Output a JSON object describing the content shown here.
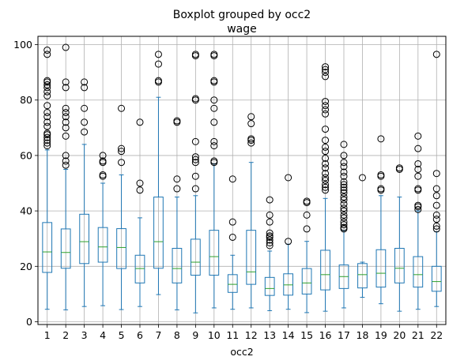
{
  "chart_data": {
    "type": "boxplot",
    "title": "Boxplot grouped by occ2",
    "subtitle": "wage",
    "xlabel": "occ2",
    "ylabel": "",
    "ylim": [
      -1,
      103
    ],
    "yticks": [
      0,
      20,
      40,
      60,
      80,
      100
    ],
    "categories": [
      "1",
      "2",
      "3",
      "4",
      "5",
      "6",
      "7",
      "8",
      "9",
      "10",
      "11",
      "12",
      "13",
      "14",
      "15",
      "16",
      "17",
      "18",
      "19",
      "20",
      "21",
      "22"
    ],
    "grid": true,
    "colors": {
      "box": "#1f77b4",
      "median": "#2ca02c",
      "flier": "#000000",
      "grid": "#b0b0b0"
    },
    "boxes": [
      {
        "min": 4.5,
        "q1": 17.8,
        "median": 25.2,
        "q3": 35.8,
        "max": 62.0,
        "fliers": [
          63.5,
          64.5,
          65.5,
          66.5,
          67.5,
          68.0,
          70.5,
          72.0,
          74.0,
          75.5,
          78.0,
          81.5,
          83.0,
          84.5,
          85.5,
          86.5,
          87.0,
          96.5,
          98.0
        ]
      },
      {
        "min": 4.3,
        "q1": 19.3,
        "median": 25.0,
        "q3": 33.5,
        "max": 55.0,
        "fliers": [
          56.5,
          58.0,
          60.0,
          67.0,
          70.0,
          72.0,
          74.0,
          75.5,
          77.0,
          84.5,
          86.5,
          99.0
        ]
      },
      {
        "min": 5.5,
        "q1": 21.0,
        "median": 28.9,
        "q3": 38.8,
        "max": 64.0,
        "fliers": [
          68.5,
          72.0,
          77.0,
          84.5,
          86.5
        ]
      },
      {
        "min": 5.8,
        "q1": 21.5,
        "median": 27.0,
        "q3": 34.0,
        "max": 50.0,
        "fliers": [
          52.5,
          53.0,
          57.5,
          58.0,
          60.0
        ]
      },
      {
        "min": 4.4,
        "q1": 19.2,
        "median": 26.8,
        "q3": 33.6,
        "max": 53.0,
        "fliers": [
          57.5,
          61.5,
          62.5,
          77.0
        ]
      },
      {
        "min": 5.5,
        "q1": 14.0,
        "median": 19.2,
        "q3": 24.0,
        "max": 37.5,
        "fliers": [
          47.5,
          50.0,
          72.0
        ]
      },
      {
        "min": 9.8,
        "q1": 19.3,
        "median": 28.9,
        "q3": 45.0,
        "max": 81.0,
        "fliers": [
          86.5,
          87.0,
          93.0,
          96.5
        ]
      },
      {
        "min": 4.3,
        "q1": 14.0,
        "median": 19.2,
        "q3": 26.5,
        "max": 45.0,
        "fliers": [
          48.0,
          51.5,
          72.0,
          72.5
        ]
      },
      {
        "min": 3.2,
        "q1": 16.8,
        "median": 21.5,
        "q3": 29.8,
        "max": 45.5,
        "fliers": [
          48.0,
          52.5,
          57.5,
          58.5,
          59.5,
          65.0,
          80.0,
          80.5,
          96.0,
          96.5
        ]
      },
      {
        "min": 5.0,
        "q1": 16.8,
        "median": 23.5,
        "q3": 33.0,
        "max": 57.0,
        "fliers": [
          57.5,
          58.0,
          63.5,
          65.0,
          72.0,
          77.0,
          80.0,
          86.5,
          87.0,
          96.0,
          96.5
        ]
      },
      {
        "min": 4.5,
        "q1": 10.6,
        "median": 13.5,
        "q3": 17.0,
        "max": 24.0,
        "fliers": [
          30.5,
          36.0,
          51.5
        ]
      },
      {
        "min": 5.0,
        "q1": 13.5,
        "median": 18.0,
        "q3": 33.0,
        "max": 57.5,
        "fliers": [
          64.5,
          65.5,
          66.0,
          71.5,
          74.0
        ]
      },
      {
        "min": 4.0,
        "q1": 9.5,
        "median": 12.0,
        "q3": 16.0,
        "max": 25.5,
        "fliers": [
          27.5,
          28.5,
          29.5,
          30.5,
          31.0,
          32.0,
          36.0,
          38.5,
          44.0
        ]
      },
      {
        "min": 4.5,
        "q1": 9.6,
        "median": 13.3,
        "q3": 17.3,
        "max": 28.0,
        "fliers": [
          29.0,
          52.0
        ]
      },
      {
        "min": 3.3,
        "q1": 10.0,
        "median": 14.0,
        "q3": 19.2,
        "max": 29.0,
        "fliers": [
          33.5,
          38.5,
          43.0,
          43.5
        ]
      },
      {
        "min": 3.8,
        "q1": 11.5,
        "median": 17.0,
        "q3": 25.8,
        "max": 44.5,
        "fliers": [
          47.5,
          48.5,
          49.5,
          51.0,
          52.0,
          53.5,
          55.5,
          57.0,
          59.0,
          61.5,
          63.0,
          65.5,
          69.5,
          75.0,
          76.5,
          78.0,
          79.5,
          88.5,
          90.0,
          91.0,
          92.0
        ]
      },
      {
        "min": 5.0,
        "q1": 12.0,
        "median": 16.3,
        "q3": 20.5,
        "max": 33.0,
        "fliers": [
          33.5,
          34.0,
          35.0,
          36.0,
          37.5,
          38.5,
          40.0,
          41.0,
          42.5,
          44.0,
          45.0,
          46.5,
          47.5,
          48.5,
          49.5,
          50.5,
          52.5,
          54.0,
          56.0,
          57.5,
          60.0,
          64.0
        ]
      },
      {
        "min": 8.8,
        "q1": 12.2,
        "median": 17.0,
        "q3": 21.0,
        "max": 21.5,
        "fliers": [
          52.0
        ]
      },
      {
        "min": 6.5,
        "q1": 12.5,
        "median": 17.5,
        "q3": 26.0,
        "max": 45.5,
        "fliers": [
          47.5,
          48.0,
          52.5,
          53.0,
          66.0
        ]
      },
      {
        "min": 3.8,
        "q1": 14.0,
        "median": 19.3,
        "q3": 26.5,
        "max": 45.0,
        "fliers": [
          55.0,
          55.5
        ]
      },
      {
        "min": 4.5,
        "q1": 12.5,
        "median": 17.0,
        "q3": 23.5,
        "max": 40.0,
        "fliers": [
          40.5,
          41.5,
          42.0,
          47.5,
          48.0,
          52.5,
          55.0,
          57.0,
          62.5,
          67.0
        ]
      },
      {
        "min": 5.5,
        "q1": 11.0,
        "median": 14.5,
        "q3": 20.0,
        "max": 32.5,
        "fliers": [
          33.5,
          34.5,
          37.0,
          38.5,
          42.0,
          45.5,
          48.0,
          53.5,
          96.5
        ]
      }
    ]
  }
}
